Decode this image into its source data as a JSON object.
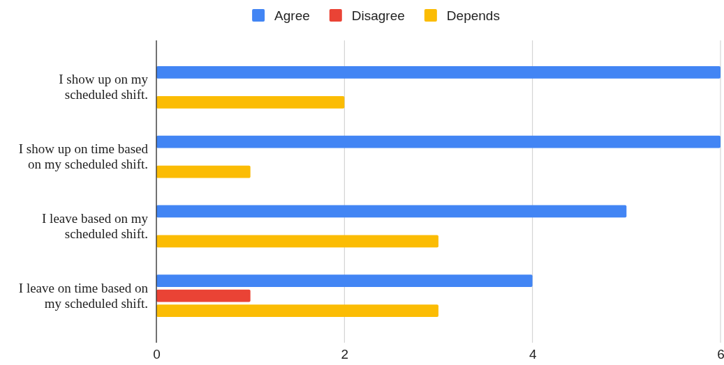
{
  "chart_data": {
    "type": "bar",
    "orientation": "horizontal",
    "categories": [
      "I show up on my scheduled shift.",
      "I show up on time based on my scheduled shift.",
      "I leave based on my scheduled shift.",
      "I leave on time based on my scheduled shift."
    ],
    "series": [
      {
        "name": "Agree",
        "color": "#4285f4",
        "values": [
          6,
          6,
          5,
          4
        ]
      },
      {
        "name": "Disagree",
        "color": "#ea4335",
        "values": [
          null,
          null,
          null,
          1
        ]
      },
      {
        "name": "Depends",
        "color": "#fbbc04",
        "values": [
          2,
          1,
          3,
          3
        ]
      }
    ],
    "xlim": [
      0,
      6
    ],
    "xticks": [
      0,
      2,
      4,
      6
    ],
    "grid": "x",
    "legend": "top"
  }
}
